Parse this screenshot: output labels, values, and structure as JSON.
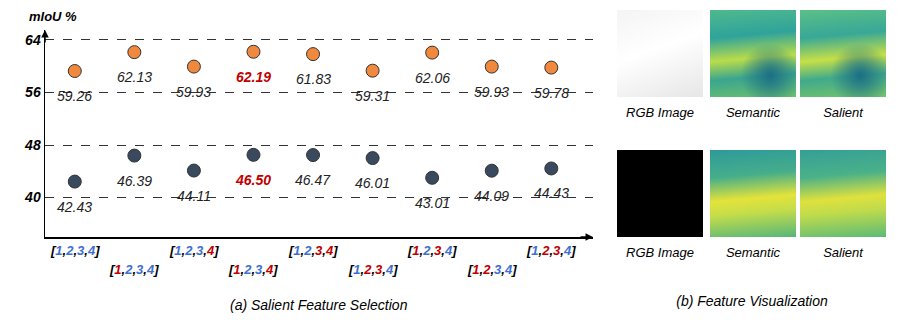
{
  "chart_data": {
    "type": "scatter",
    "title": "(a) Salient Feature Selection",
    "ylabel": "mIoU %",
    "categories": [
      "[1,2,3,4]",
      "[1,2,3,4]",
      "[1,2,3,4]",
      "[1,2,3,4]",
      "[1,2,3,4]",
      "[1,2,3,4]",
      "[1,2,3,4]",
      "[1,2,3,4]",
      "[1,2,3,4]"
    ],
    "highlighted_stages": [
      [],
      [
        1
      ],
      [
        4
      ],
      [
        1,
        4
      ],
      [
        3,
        4
      ],
      [
        2,
        3
      ],
      [
        1,
        3
      ],
      [
        1,
        2
      ],
      [
        2,
        3
      ]
    ],
    "series": [
      {
        "color": "#F0883E",
        "values": [
          59.26,
          62.13,
          59.93,
          62.19,
          61.83,
          59.31,
          62.06,
          59.93,
          59.78
        ],
        "value_labels": [
          "59.26",
          "62.13",
          "59.93",
          "62.19",
          "61.83",
          "59.31",
          "62.06",
          "59.93",
          "59.78"
        ]
      },
      {
        "color": "#3A4A5E",
        "values": [
          42.43,
          46.39,
          44.11,
          46.5,
          46.47,
          46.01,
          43.01,
          44.09,
          44.43
        ],
        "value_labels": [
          "42.43",
          "46.39",
          "44.11",
          "46.50",
          "46.47",
          "46.01",
          "43.01",
          "44.09",
          "44.43"
        ]
      }
    ],
    "ylim": [
      34,
      65.5
    ],
    "yticks": [
      40,
      48,
      56,
      64
    ],
    "grid": true,
    "data_labels": true,
    "marker": "circle"
  },
  "feature_visualization": {
    "title": "(b) Feature Visualization",
    "rows": [
      [
        "RGB Image",
        "Semantic",
        "Salient"
      ],
      [
        "RGB Image",
        "Semantic",
        "Salient"
      ]
    ]
  }
}
